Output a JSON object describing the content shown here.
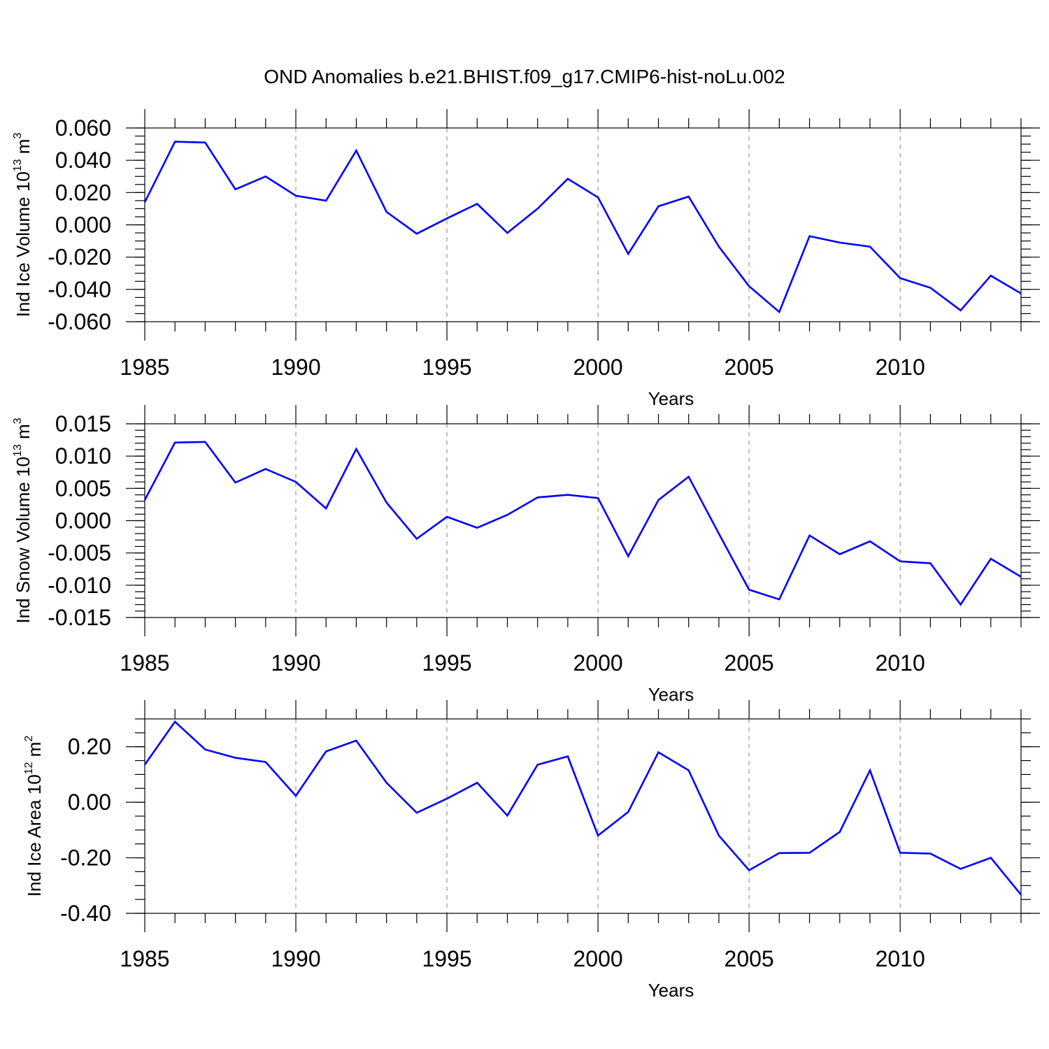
{
  "title": "OND Anomalies b.e21.BHIST.f09_g17.CMIP6-hist-noLu.002",
  "colors": {
    "line": "#0000ff",
    "grid": "#999999",
    "axis": "#000000"
  },
  "chart_data": [
    {
      "type": "line",
      "ylabel": {
        "base": "Ind Ice Volume 10",
        "exponent": "13",
        "unit": " m",
        "unit_exponent": "3"
      },
      "xlabel": "Years",
      "xlim": [
        1985,
        2014
      ],
      "ylim": [
        -0.06,
        0.06
      ],
      "x_ticks": [
        "1985",
        "1990",
        "1995",
        "2000",
        "2005",
        "2010"
      ],
      "y_ticks": [
        "0.060",
        "0.040",
        "0.020",
        "0.000",
        "-0.020",
        "-0.040",
        "-0.060"
      ],
      "y_tick_values": [
        0.06,
        0.04,
        0.02,
        0.0,
        -0.02,
        -0.04,
        -0.06
      ],
      "minor_y_step": 0.005,
      "grid_x": [
        1990,
        1995,
        2000,
        2005,
        2010
      ],
      "x": [
        1985,
        1986,
        1987,
        1988,
        1989,
        1990,
        1991,
        1992,
        1993,
        1994,
        1995,
        1996,
        1997,
        1998,
        1999,
        2000,
        2001,
        2002,
        2003,
        2004,
        2005,
        2006,
        2007,
        2008,
        2009,
        2010,
        2011,
        2012,
        2013,
        2014
      ],
      "series": [
        {
          "values": [
            0.014,
            0.0515,
            0.051,
            0.022,
            0.03,
            0.018,
            0.015,
            0.046,
            0.008,
            -0.0055,
            0.004,
            0.013,
            -0.005,
            0.01,
            0.0285,
            0.017,
            -0.018,
            0.0115,
            0.0175,
            -0.0135,
            -0.038,
            -0.054,
            -0.007,
            -0.011,
            -0.0135,
            -0.033,
            -0.039,
            -0.053,
            -0.0315,
            -0.0425
          ]
        }
      ]
    },
    {
      "type": "line",
      "ylabel": {
        "base": "Ind Snow Volume 10",
        "exponent": "13",
        "unit": " m",
        "unit_exponent": "3"
      },
      "xlabel": "Years",
      "xlim": [
        1985,
        2014
      ],
      "ylim": [
        -0.015,
        0.015
      ],
      "x_ticks": [
        "1985",
        "1990",
        "1995",
        "2000",
        "2005",
        "2010"
      ],
      "y_ticks": [
        "0.015",
        "0.010",
        "0.005",
        "0.000",
        "-0.005",
        "-0.010",
        "-0.015"
      ],
      "y_tick_values": [
        0.015,
        0.01,
        0.005,
        0.0,
        -0.005,
        -0.01,
        -0.015
      ],
      "minor_y_step": 0.001,
      "grid_x": [
        1990,
        1995,
        2000,
        2005,
        2010
      ],
      "x": [
        1985,
        1986,
        1987,
        1988,
        1989,
        1990,
        1991,
        1992,
        1993,
        1994,
        1995,
        1996,
        1997,
        1998,
        1999,
        2000,
        2001,
        2002,
        2003,
        2004,
        2005,
        2006,
        2007,
        2008,
        2009,
        2010,
        2011,
        2012,
        2013,
        2014
      ],
      "series": [
        {
          "values": [
            0.0032,
            0.0121,
            0.0122,
            0.0059,
            0.008,
            0.006,
            0.0019,
            0.0111,
            0.0028,
            -0.0028,
            0.0006,
            -0.0011,
            0.0009,
            0.0036,
            0.004,
            0.0035,
            -0.0055,
            0.0032,
            0.0068,
            -0.002,
            -0.0107,
            -0.0122,
            -0.0023,
            -0.0052,
            -0.0032,
            -0.0063,
            -0.0066,
            -0.013,
            -0.0059,
            -0.0087
          ]
        }
      ]
    },
    {
      "type": "line",
      "ylabel": {
        "base": "Ind Ice Area 10",
        "exponent": "12",
        "unit": " m",
        "unit_exponent": "2"
      },
      "xlabel": "Years",
      "xlim": [
        1985,
        2014
      ],
      "ylim": [
        -0.4,
        0.3
      ],
      "x_ticks": [
        "1985",
        "1990",
        "1995",
        "2000",
        "2005",
        "2010"
      ],
      "y_ticks": [
        "0.20",
        "0.00",
        "-0.20",
        "-0.40"
      ],
      "y_tick_values": [
        0.2,
        0.0,
        -0.2,
        -0.4
      ],
      "minor_y_step": 0.05,
      "grid_x": [
        1990,
        1995,
        2000,
        2005,
        2010
      ],
      "x": [
        1985,
        1986,
        1987,
        1988,
        1989,
        1990,
        1991,
        1992,
        1993,
        1994,
        1995,
        1996,
        1997,
        1998,
        1999,
        2000,
        2001,
        2002,
        2003,
        2004,
        2005,
        2006,
        2007,
        2008,
        2009,
        2010,
        2011,
        2012,
        2013,
        2014
      ],
      "series": [
        {
          "values": [
            0.135,
            0.29,
            0.19,
            0.16,
            0.145,
            0.023,
            0.183,
            0.222,
            0.07,
            -0.038,
            0.013,
            0.07,
            -0.048,
            0.135,
            0.165,
            -0.12,
            -0.035,
            0.18,
            0.115,
            -0.12,
            -0.245,
            -0.183,
            -0.182,
            -0.107,
            0.115,
            -0.182,
            -0.185,
            -0.24,
            -0.2,
            -0.333
          ]
        }
      ]
    }
  ]
}
